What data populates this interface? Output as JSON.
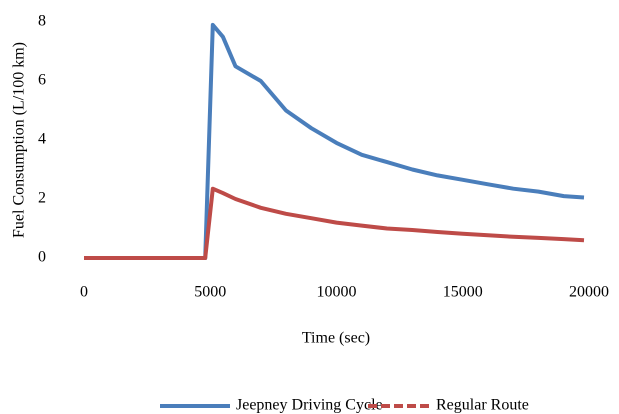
{
  "chart_data": {
    "type": "line",
    "x_label": "Time (sec)",
    "y_label": "Fuel Consumption  (L/100 km)",
    "x": [
      0,
      4800,
      5100,
      5500,
      6000,
      7000,
      8000,
      9000,
      10000,
      11000,
      12000,
      13000,
      14000,
      15000,
      16000,
      17000,
      18000,
      19000,
      19800
    ],
    "series": [
      {
        "name": "Jeepney Driving Cycle",
        "color": "#4a7ebb",
        "dash": false,
        "values": [
          0,
          0,
          7.9,
          7.5,
          6.5,
          6.0,
          5.0,
          4.4,
          3.9,
          3.5,
          3.25,
          3.0,
          2.8,
          2.65,
          2.5,
          2.35,
          2.25,
          2.1,
          2.05
        ]
      },
      {
        "name": "Regular Route",
        "color": "#be4b48",
        "dash": true,
        "values": [
          0,
          0,
          2.35,
          2.2,
          2.0,
          1.7,
          1.5,
          1.35,
          1.2,
          1.1,
          1.0,
          0.95,
          0.88,
          0.82,
          0.77,
          0.72,
          0.68,
          0.64,
          0.6
        ]
      }
    ],
    "xlim": [
      0,
      20000
    ],
    "xticks": [
      0,
      5000,
      10000,
      15000,
      20000
    ],
    "ylim": [
      0,
      8
    ],
    "yticks": [
      0,
      2,
      4,
      6,
      8
    ],
    "grid": false,
    "legend": "bottom"
  }
}
